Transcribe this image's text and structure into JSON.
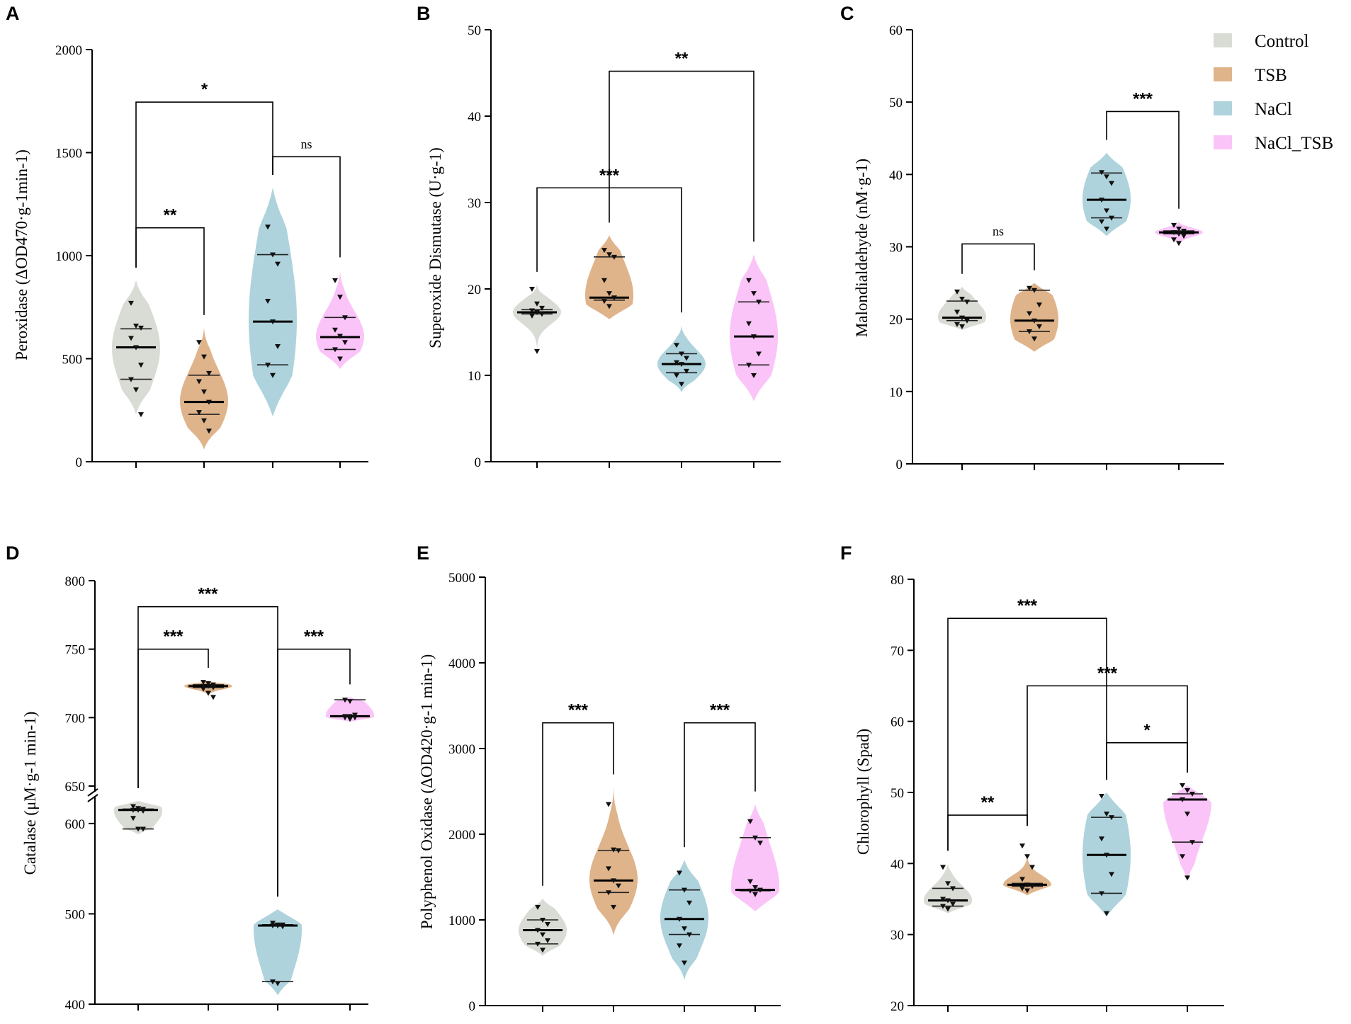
{
  "legend": {
    "entries": [
      {
        "label": "Control",
        "color": "#d9dbd5"
      },
      {
        "label": "TSB",
        "color": "#dfb48b"
      },
      {
        "label": "NaCl",
        "color": "#aed3dc"
      },
      {
        "label": "NaCl_TSB",
        "color": "#fbc4f8"
      }
    ]
  },
  "chart_data": [
    {
      "panel": "A",
      "type": "violin",
      "ylabel": "Peroxidase (ΔOD470·g-1min-1)",
      "ylim": [
        0,
        2000
      ],
      "yticks": [
        0,
        500,
        1000,
        1500,
        2000
      ],
      "groups": [
        {
          "name": "Control",
          "min": 230,
          "max": 880,
          "median": 555,
          "q1": 400,
          "q3": 645,
          "points": [
            770,
            660,
            650,
            600,
            555,
            470,
            400,
            350,
            230
          ]
        },
        {
          "name": "TSB",
          "min": 60,
          "max": 650,
          "median": 290,
          "q1": 230,
          "q3": 420,
          "points": [
            580,
            510,
            430,
            390,
            340,
            290,
            240,
            200,
            150
          ]
        },
        {
          "name": "NaCl",
          "min": 220,
          "max": 1330,
          "median": 680,
          "q1": 470,
          "q3": 1005,
          "points": [
            1140,
            1005,
            960,
            780,
            680,
            560,
            470,
            420
          ]
        },
        {
          "name": "NaCl_TSB",
          "min": 450,
          "max": 930,
          "median": 605,
          "q1": 545,
          "q3": 700,
          "points": [
            880,
            800,
            700,
            640,
            610,
            580,
            545,
            500
          ]
        }
      ],
      "significance": [
        {
          "from": 0,
          "to": 2,
          "label": "*",
          "y": 1745
        },
        {
          "from": 0,
          "to": 1,
          "label": "**",
          "y": 1135
        },
        {
          "from": 2,
          "to": 3,
          "label": "ns",
          "y": 1480
        }
      ]
    },
    {
      "panel": "B",
      "type": "violin",
      "ylabel": "Superoxide Dismutase (U·g-1)",
      "ylim": [
        0,
        50
      ],
      "yticks": [
        0,
        10,
        20,
        30,
        40,
        50
      ],
      "groups": [
        {
          "name": "Control",
          "min": 12.5,
          "max": 20.5,
          "median": 17.3,
          "q1": 17.1,
          "q3": 17.6,
          "points": [
            20.0,
            18.3,
            17.8,
            17.5,
            17.3,
            17.1,
            16.9,
            12.8
          ]
        },
        {
          "name": "TSB",
          "min": 16.5,
          "max": 26.2,
          "median": 19.0,
          "q1": 18.7,
          "q3": 23.7,
          "points": [
            24.5,
            24.0,
            23.7,
            21.0,
            19.5,
            19.0,
            18.6,
            18.0
          ]
        },
        {
          "name": "NaCl",
          "min": 8.0,
          "max": 15.8,
          "median": 11.3,
          "q1": 10.3,
          "q3": 12.5,
          "points": [
            13.5,
            12.5,
            12.0,
            11.5,
            11.3,
            10.5,
            10.0,
            9.0
          ]
        },
        {
          "name": "NaCl_TSB",
          "min": 7.0,
          "max": 24.0,
          "median": 14.5,
          "q1": 11.2,
          "q3": 18.5,
          "points": [
            21.0,
            19.5,
            18.5,
            16.0,
            14.5,
            12.5,
            11.2,
            10.0
          ]
        }
      ],
      "significance": [
        {
          "from": 1,
          "to": 3,
          "label": "**",
          "y": 45.2
        },
        {
          "from": 0,
          "to": 2,
          "label": "***",
          "y": 31.7
        }
      ]
    },
    {
      "panel": "C",
      "type": "violin",
      "ylabel": "Malondialdehyde (nM·g-1)",
      "ylim": [
        0,
        60
      ],
      "yticks": [
        0,
        10,
        20,
        30,
        40,
        50,
        60
      ],
      "groups": [
        {
          "name": "Control",
          "min": 18.5,
          "max": 24.5,
          "median": 20.2,
          "q1": 19.8,
          "q3": 22.5,
          "points": [
            23.8,
            22.8,
            22.4,
            21.0,
            20.2,
            19.8,
            19.3,
            19.0
          ]
        },
        {
          "name": "TSB",
          "min": 15.5,
          "max": 25.0,
          "median": 19.8,
          "q1": 18.3,
          "q3": 24.0,
          "points": [
            24.3,
            24.0,
            22.0,
            20.8,
            19.8,
            19.0,
            18.3,
            17.3
          ]
        },
        {
          "name": "NaCl",
          "min": 31.5,
          "max": 43.0,
          "median": 36.5,
          "q1": 34.0,
          "q3": 40.2,
          "points": [
            40.3,
            39.7,
            38.8,
            36.5,
            35.0,
            34.0,
            33.5,
            32.5
          ]
        },
        {
          "name": "NaCl_TSB",
          "min": 30.0,
          "max": 33.5,
          "median": 32.0,
          "q1": 31.8,
          "q3": 32.2,
          "points": [
            33.0,
            32.5,
            32.2,
            32.0,
            31.8,
            31.5,
            31.0,
            30.5
          ]
        }
      ],
      "significance": [
        {
          "from": 2,
          "to": 3,
          "label": "***",
          "y": 48.7
        },
        {
          "from": 0,
          "to": 1,
          "label": "ns",
          "y": 30.4
        }
      ]
    },
    {
      "panel": "D",
      "type": "violin",
      "ylabel": "Catalase (μM·g-1 min-1)",
      "ylim": [
        400,
        800
      ],
      "axis_break": {
        "label_at": 650,
        "note": "broken axis: lower segment 400–625, upper segment 650–800"
      },
      "yticks": [
        400,
        500,
        600,
        650,
        700,
        750,
        800
      ],
      "groups": [
        {
          "name": "Control",
          "min": 588,
          "max": 625,
          "median": 615,
          "q1": 594,
          "q3": 616,
          "points": [
            619,
            617,
            616,
            615,
            615,
            614,
            606,
            594,
            594
          ]
        },
        {
          "name": "TSB",
          "min": 713,
          "max": 727,
          "median": 723,
          "q1": 722,
          "q3": 724,
          "points": [
            726,
            725,
            724,
            723,
            723,
            722,
            721,
            718,
            715
          ]
        },
        {
          "name": "NaCl",
          "min": 410,
          "max": 505,
          "median": 487,
          "q1": 425,
          "q3": 488,
          "points": [
            490,
            488,
            488,
            487,
            487,
            486,
            425,
            423
          ]
        },
        {
          "name": "NaCl_TSB",
          "min": 697,
          "max": 715,
          "median": 701,
          "q1": 701,
          "q3": 713,
          "points": [
            713,
            712,
            702,
            701,
            701,
            700,
            700,
            699
          ]
        }
      ],
      "significance": [
        {
          "from": 0,
          "to": 2,
          "label": "***",
          "y": 781
        },
        {
          "from": 0,
          "to": 1,
          "label": "***",
          "y": 750
        },
        {
          "from": 2,
          "to": 3,
          "label": "***",
          "y": 750
        }
      ]
    },
    {
      "panel": "E",
      "type": "violin",
      "ylabel": "Polyphenol Oxidase (ΔOD420·g-1 min-1)",
      "ylim": [
        0,
        5000
      ],
      "yticks": [
        0,
        1000,
        2000,
        3000,
        4000,
        5000
      ],
      "groups": [
        {
          "name": "Control",
          "min": 580,
          "max": 1250,
          "median": 880,
          "q1": 720,
          "q3": 1000,
          "points": [
            1150,
            1000,
            950,
            880,
            830,
            760,
            720,
            650
          ]
        },
        {
          "name": "TSB",
          "min": 820,
          "max": 2550,
          "median": 1460,
          "q1": 1320,
          "q3": 1810,
          "points": [
            2350,
            1820,
            1810,
            1600,
            1460,
            1400,
            1320,
            1150
          ]
        },
        {
          "name": "NaCl",
          "min": 300,
          "max": 1700,
          "median": 1010,
          "q1": 830,
          "q3": 1350,
          "points": [
            1550,
            1350,
            1200,
            1010,
            900,
            830,
            700,
            500
          ]
        },
        {
          "name": "NaCl_TSB",
          "min": 1100,
          "max": 2350,
          "median": 1350,
          "q1": 1340,
          "q3": 1960,
          "points": [
            2150,
            1960,
            1900,
            1450,
            1380,
            1350,
            1340,
            1300
          ]
        }
      ],
      "significance": [
        {
          "from": 0,
          "to": 1,
          "label": "***",
          "y": 3300
        },
        {
          "from": 2,
          "to": 3,
          "label": "***",
          "y": 3300
        }
      ]
    },
    {
      "panel": "F",
      "type": "violin",
      "ylabel": "Chlorophyll (Spad)",
      "ylim": [
        20,
        80
      ],
      "yticks": [
        20,
        30,
        40,
        50,
        60,
        70,
        80
      ],
      "groups": [
        {
          "name": "Control",
          "min": 33.0,
          "max": 40.0,
          "median": 34.8,
          "q1": 34.0,
          "q3": 36.5,
          "points": [
            39.5,
            37.2,
            36.5,
            35.0,
            34.8,
            34.3,
            34.0,
            33.6
          ]
        },
        {
          "name": "TSB",
          "min": 35.5,
          "max": 43.5,
          "median": 37.0,
          "q1": 36.8,
          "q3": 37.2,
          "points": [
            42.5,
            41.0,
            39.5,
            37.8,
            37.0,
            36.8,
            36.5,
            36.2
          ]
        },
        {
          "name": "NaCl",
          "min": 32.5,
          "max": 50.0,
          "median": 41.2,
          "q1": 35.8,
          "q3": 46.5,
          "points": [
            49.5,
            47.0,
            46.5,
            43.5,
            41.2,
            38.5,
            35.8,
            33.0
          ]
        },
        {
          "name": "NaCl_TSB",
          "min": 37.5,
          "max": 51.0,
          "median": 49.0,
          "q1": 43.0,
          "q3": 49.8,
          "points": [
            51.0,
            50.3,
            49.8,
            49.0,
            47.0,
            43.0,
            41.0,
            38.0
          ]
        }
      ],
      "significance": [
        {
          "from": 0,
          "to": 2,
          "label": "***",
          "y": 74.5
        },
        {
          "from": 1,
          "to": 3,
          "label": "***",
          "y": 65.0
        },
        {
          "from": 2,
          "to": 3,
          "label": "*",
          "y": 57.0
        },
        {
          "from": 0,
          "to": 1,
          "label": "**",
          "y": 46.8
        }
      ]
    }
  ]
}
